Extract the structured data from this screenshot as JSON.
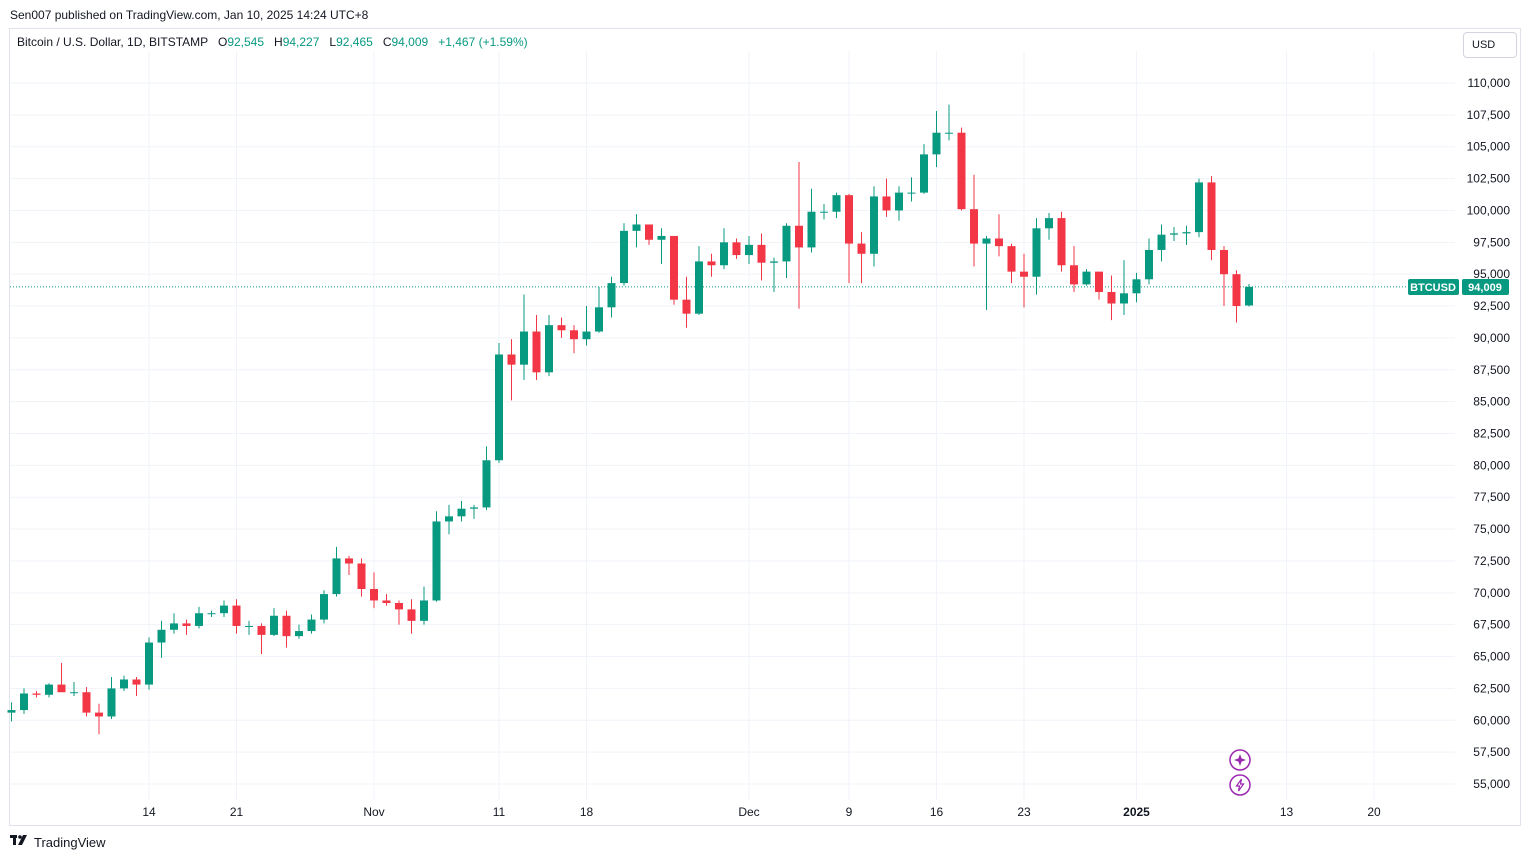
{
  "header": {
    "published_line": "Sen007 published on TradingView.com, Jan 10, 2025 14:24 UTC+8"
  },
  "legend": {
    "symbol": "Bitcoin / U.S. Dollar, 1D, BITSTAMP",
    "o_label": "O",
    "o_value": "92,545",
    "h_label": "H",
    "h_value": "94,227",
    "l_label": "L",
    "l_value": "92,465",
    "c_label": "C",
    "c_value": "94,009",
    "change": "+1,467 (+1.59%)"
  },
  "currency_button": {
    "label": "USD"
  },
  "price_badge": {
    "symbol": "BTCUSD",
    "value": "94,009"
  },
  "footer": {
    "brand": "TradingView"
  },
  "colors": {
    "up": "#089981",
    "down": "#f23645",
    "grid": "#f0f3fa",
    "text": "#131722",
    "assistant_icon": "#9c27b0"
  },
  "icons": [
    "sparkle-icon",
    "lightning-icon",
    "tradingview-logo-icon"
  ],
  "chart_data": {
    "type": "candlestick",
    "title": "Bitcoin / U.S. Dollar, 1D, BITSTAMP",
    "ylim": [
      53500,
      112500
    ],
    "y_ticks": [
      55000,
      57500,
      60000,
      62500,
      65000,
      67500,
      70000,
      72500,
      75000,
      77500,
      80000,
      82500,
      85000,
      87500,
      90000,
      92500,
      95000,
      97500,
      100000,
      102500,
      105000,
      107500,
      110000
    ],
    "y_tick_labels": [
      "55,000",
      "57,500",
      "60,000",
      "62,500",
      "65,000",
      "67,500",
      "70,000",
      "72,500",
      "75,000",
      "77,500",
      "80,000",
      "82,500",
      "85,000",
      "87,500",
      "90,000",
      "92,500",
      "95,000",
      "97,500",
      "100,000",
      "102,500",
      "105,000",
      "107,500",
      "110,000"
    ],
    "x_tick_labels": [
      {
        "label": "14",
        "date": "2024-10-14"
      },
      {
        "label": "21",
        "date": "2024-10-21"
      },
      {
        "label": "Nov",
        "date": "2024-11-01"
      },
      {
        "label": "11",
        "date": "2024-11-11"
      },
      {
        "label": "18",
        "date": "2024-11-18"
      },
      {
        "label": "Dec",
        "date": "2024-12-01"
      },
      {
        "label": "9",
        "date": "2024-12-09"
      },
      {
        "label": "16",
        "date": "2024-12-16"
      },
      {
        "label": "23",
        "date": "2024-12-23"
      },
      {
        "label": "2025",
        "date": "2025-01-01",
        "bold": true
      },
      {
        "label": "13",
        "date": "2025-01-13"
      },
      {
        "label": "20",
        "date": "2025-01-20"
      }
    ],
    "last_price": 94009,
    "candles": [
      {
        "date": "2024-10-03",
        "o": 60600,
        "h": 61400,
        "l": 59900,
        "c": 60800
      },
      {
        "date": "2024-10-04",
        "o": 60800,
        "h": 62500,
        "l": 60500,
        "c": 62100
      },
      {
        "date": "2024-10-05",
        "o": 62100,
        "h": 62300,
        "l": 61800,
        "c": 62000
      },
      {
        "date": "2024-10-06",
        "o": 62000,
        "h": 62900,
        "l": 61800,
        "c": 62800
      },
      {
        "date": "2024-10-07",
        "o": 62800,
        "h": 64500,
        "l": 62300,
        "c": 62200
      },
      {
        "date": "2024-10-08",
        "o": 62200,
        "h": 63000,
        "l": 61900,
        "c": 62200
      },
      {
        "date": "2024-10-09",
        "o": 62200,
        "h": 62600,
        "l": 60300,
        "c": 60600
      },
      {
        "date": "2024-10-10",
        "o": 60600,
        "h": 61300,
        "l": 58900,
        "c": 60300
      },
      {
        "date": "2024-10-11",
        "o": 60300,
        "h": 63400,
        "l": 60100,
        "c": 62500
      },
      {
        "date": "2024-10-12",
        "o": 62500,
        "h": 63500,
        "l": 62300,
        "c": 63200
      },
      {
        "date": "2024-10-13",
        "o": 63200,
        "h": 63400,
        "l": 61900,
        "c": 62800
      },
      {
        "date": "2024-10-14",
        "o": 62800,
        "h": 66500,
        "l": 62400,
        "c": 66100
      },
      {
        "date": "2024-10-15",
        "o": 66100,
        "h": 67800,
        "l": 64900,
        "c": 67100
      },
      {
        "date": "2024-10-16",
        "o": 67100,
        "h": 68400,
        "l": 66800,
        "c": 67600
      },
      {
        "date": "2024-10-17",
        "o": 67600,
        "h": 67900,
        "l": 66700,
        "c": 67400
      },
      {
        "date": "2024-10-18",
        "o": 67400,
        "h": 68900,
        "l": 67200,
        "c": 68400
      },
      {
        "date": "2024-10-19",
        "o": 68400,
        "h": 68600,
        "l": 68100,
        "c": 68400
      },
      {
        "date": "2024-10-20",
        "o": 68400,
        "h": 69400,
        "l": 68100,
        "c": 69000
      },
      {
        "date": "2024-10-21",
        "o": 69000,
        "h": 69500,
        "l": 66800,
        "c": 67400
      },
      {
        "date": "2024-10-22",
        "o": 67400,
        "h": 67800,
        "l": 66700,
        "c": 67400
      },
      {
        "date": "2024-10-23",
        "o": 67400,
        "h": 67600,
        "l": 65200,
        "c": 66700
      },
      {
        "date": "2024-10-24",
        "o": 66700,
        "h": 68800,
        "l": 66600,
        "c": 68200
      },
      {
        "date": "2024-10-25",
        "o": 68200,
        "h": 68600,
        "l": 65700,
        "c": 66600
      },
      {
        "date": "2024-10-26",
        "o": 66600,
        "h": 67500,
        "l": 66400,
        "c": 67000
      },
      {
        "date": "2024-10-27",
        "o": 67000,
        "h": 68300,
        "l": 66800,
        "c": 67900
      },
      {
        "date": "2024-10-28",
        "o": 67900,
        "h": 70200,
        "l": 67600,
        "c": 69900
      },
      {
        "date": "2024-10-29",
        "o": 69900,
        "h": 73600,
        "l": 69700,
        "c": 72700
      },
      {
        "date": "2024-10-30",
        "o": 72700,
        "h": 72900,
        "l": 71400,
        "c": 72300
      },
      {
        "date": "2024-10-31",
        "o": 72300,
        "h": 72700,
        "l": 69700,
        "c": 70300
      },
      {
        "date": "2024-11-01",
        "o": 70300,
        "h": 71600,
        "l": 68800,
        "c": 69400
      },
      {
        "date": "2024-11-02",
        "o": 69400,
        "h": 69900,
        "l": 69000,
        "c": 69200
      },
      {
        "date": "2024-11-03",
        "o": 69200,
        "h": 69400,
        "l": 67500,
        "c": 68700
      },
      {
        "date": "2024-11-04",
        "o": 68700,
        "h": 69500,
        "l": 66800,
        "c": 67800
      },
      {
        "date": "2024-11-05",
        "o": 67800,
        "h": 70500,
        "l": 67500,
        "c": 69400
      },
      {
        "date": "2024-11-06",
        "o": 69400,
        "h": 76400,
        "l": 69300,
        "c": 75600
      },
      {
        "date": "2024-11-07",
        "o": 75600,
        "h": 76900,
        "l": 74600,
        "c": 76000
      },
      {
        "date": "2024-11-08",
        "o": 76000,
        "h": 77200,
        "l": 75600,
        "c": 76600
      },
      {
        "date": "2024-11-09",
        "o": 76600,
        "h": 76900,
        "l": 75800,
        "c": 76700
      },
      {
        "date": "2024-11-10",
        "o": 76700,
        "h": 81500,
        "l": 76500,
        "c": 80400
      },
      {
        "date": "2024-11-11",
        "o": 80400,
        "h": 89600,
        "l": 80200,
        "c": 88700
      },
      {
        "date": "2024-11-12",
        "o": 88700,
        "h": 89900,
        "l": 85100,
        "c": 87900
      },
      {
        "date": "2024-11-13",
        "o": 87900,
        "h": 93400,
        "l": 86700,
        "c": 90500
      },
      {
        "date": "2024-11-14",
        "o": 90500,
        "h": 91800,
        "l": 86700,
        "c": 87300
      },
      {
        "date": "2024-11-15",
        "o": 87300,
        "h": 91800,
        "l": 87000,
        "c": 91000
      },
      {
        "date": "2024-11-16",
        "o": 91000,
        "h": 91600,
        "l": 90000,
        "c": 90600
      },
      {
        "date": "2024-11-17",
        "o": 90600,
        "h": 91000,
        "l": 88800,
        "c": 89900
      },
      {
        "date": "2024-11-18",
        "o": 89900,
        "h": 92500,
        "l": 89400,
        "c": 90500
      },
      {
        "date": "2024-11-19",
        "o": 90500,
        "h": 94000,
        "l": 90400,
        "c": 92400
      },
      {
        "date": "2024-11-20",
        "o": 92400,
        "h": 94800,
        "l": 91600,
        "c": 94300
      },
      {
        "date": "2024-11-21",
        "o": 94300,
        "h": 99000,
        "l": 94100,
        "c": 98400
      },
      {
        "date": "2024-11-22",
        "o": 98400,
        "h": 99700,
        "l": 97100,
        "c": 98900
      },
      {
        "date": "2024-11-23",
        "o": 98900,
        "h": 98900,
        "l": 97300,
        "c": 97700
      },
      {
        "date": "2024-11-24",
        "o": 97700,
        "h": 98600,
        "l": 95800,
        "c": 98000
      },
      {
        "date": "2024-11-25",
        "o": 98000,
        "h": 98000,
        "l": 92600,
        "c": 93000
      },
      {
        "date": "2024-11-26",
        "o": 93000,
        "h": 94800,
        "l": 90800,
        "c": 91900
      },
      {
        "date": "2024-11-27",
        "o": 91900,
        "h": 97200,
        "l": 91800,
        "c": 96000
      },
      {
        "date": "2024-11-28",
        "o": 96000,
        "h": 96600,
        "l": 94800,
        "c": 95700
      },
      {
        "date": "2024-11-29",
        "o": 95700,
        "h": 98600,
        "l": 95400,
        "c": 97500
      },
      {
        "date": "2024-11-30",
        "o": 97500,
        "h": 97800,
        "l": 96200,
        "c": 96500
      },
      {
        "date": "2024-12-01",
        "o": 96500,
        "h": 98000,
        "l": 95800,
        "c": 97300
      },
      {
        "date": "2024-12-02",
        "o": 97300,
        "h": 98200,
        "l": 94500,
        "c": 95900
      },
      {
        "date": "2024-12-03",
        "o": 95900,
        "h": 96300,
        "l": 93600,
        "c": 96000
      },
      {
        "date": "2024-12-04",
        "o": 96000,
        "h": 99000,
        "l": 94700,
        "c": 98800
      },
      {
        "date": "2024-12-05",
        "o": 98800,
        "h": 103800,
        "l": 92300,
        "c": 97100
      },
      {
        "date": "2024-12-06",
        "o": 97100,
        "h": 101700,
        "l": 96700,
        "c": 99900
      },
      {
        "date": "2024-12-07",
        "o": 99900,
        "h": 100500,
        "l": 99300,
        "c": 99900
      },
      {
        "date": "2024-12-08",
        "o": 99900,
        "h": 101400,
        "l": 99400,
        "c": 101200
      },
      {
        "date": "2024-12-09",
        "o": 101200,
        "h": 101300,
        "l": 94300,
        "c": 97400
      },
      {
        "date": "2024-12-10",
        "o": 97400,
        "h": 98300,
        "l": 94300,
        "c": 96600
      },
      {
        "date": "2024-12-11",
        "o": 96600,
        "h": 101900,
        "l": 95600,
        "c": 101100
      },
      {
        "date": "2024-12-12",
        "o": 101100,
        "h": 102500,
        "l": 99500,
        "c": 100000
      },
      {
        "date": "2024-12-13",
        "o": 100000,
        "h": 101900,
        "l": 99200,
        "c": 101400
      },
      {
        "date": "2024-12-14",
        "o": 101400,
        "h": 102600,
        "l": 100700,
        "c": 101400
      },
      {
        "date": "2024-12-15",
        "o": 101400,
        "h": 105200,
        "l": 101300,
        "c": 104400
      },
      {
        "date": "2024-12-16",
        "o": 104400,
        "h": 107800,
        "l": 103400,
        "c": 106100
      },
      {
        "date": "2024-12-17",
        "o": 106100,
        "h": 108300,
        "l": 105500,
        "c": 106100
      },
      {
        "date": "2024-12-18",
        "o": 106100,
        "h": 106500,
        "l": 100000,
        "c": 100100
      },
      {
        "date": "2024-12-19",
        "o": 100100,
        "h": 102800,
        "l": 95600,
        "c": 97400
      },
      {
        "date": "2024-12-20",
        "o": 97400,
        "h": 98000,
        "l": 92200,
        "c": 97800
      },
      {
        "date": "2024-12-21",
        "o": 97800,
        "h": 99700,
        "l": 96400,
        "c": 97200
      },
      {
        "date": "2024-12-22",
        "o": 97200,
        "h": 97400,
        "l": 94300,
        "c": 95200
      },
      {
        "date": "2024-12-23",
        "o": 95200,
        "h": 96600,
        "l": 92400,
        "c": 94800
      },
      {
        "date": "2024-12-24",
        "o": 94800,
        "h": 99400,
        "l": 93400,
        "c": 98600
      },
      {
        "date": "2024-12-25",
        "o": 98600,
        "h": 99800,
        "l": 97700,
        "c": 99400
      },
      {
        "date": "2024-12-26",
        "o": 99400,
        "h": 99900,
        "l": 95200,
        "c": 95700
      },
      {
        "date": "2024-12-27",
        "o": 95700,
        "h": 97200,
        "l": 93600,
        "c": 94200
      },
      {
        "date": "2024-12-28",
        "o": 94200,
        "h": 95400,
        "l": 94100,
        "c": 95200
      },
      {
        "date": "2024-12-29",
        "o": 95200,
        "h": 95200,
        "l": 93000,
        "c": 93600
      },
      {
        "date": "2024-12-30",
        "o": 93600,
        "h": 94900,
        "l": 91400,
        "c": 92700
      },
      {
        "date": "2024-12-31",
        "o": 92700,
        "h": 96100,
        "l": 91800,
        "c": 93500
      },
      {
        "date": "2025-01-01",
        "o": 93500,
        "h": 95100,
        "l": 92800,
        "c": 94600
      },
      {
        "date": "2025-01-02",
        "o": 94600,
        "h": 97800,
        "l": 94200,
        "c": 96900
      },
      {
        "date": "2025-01-03",
        "o": 96900,
        "h": 98900,
        "l": 96000,
        "c": 98100
      },
      {
        "date": "2025-01-04",
        "o": 98100,
        "h": 98700,
        "l": 97600,
        "c": 98200
      },
      {
        "date": "2025-01-05",
        "o": 98200,
        "h": 98800,
        "l": 97300,
        "c": 98300
      },
      {
        "date": "2025-01-06",
        "o": 98300,
        "h": 102500,
        "l": 97900,
        "c": 102200
      },
      {
        "date": "2025-01-07",
        "o": 102200,
        "h": 102700,
        "l": 96100,
        "c": 96900
      },
      {
        "date": "2025-01-08",
        "o": 96900,
        "h": 97200,
        "l": 92500,
        "c": 95000
      },
      {
        "date": "2025-01-09",
        "o": 95000,
        "h": 95300,
        "l": 91200,
        "c": 92500
      },
      {
        "date": "2025-01-10",
        "o": 92545,
        "h": 94227,
        "l": 92465,
        "c": 94009
      }
    ]
  }
}
